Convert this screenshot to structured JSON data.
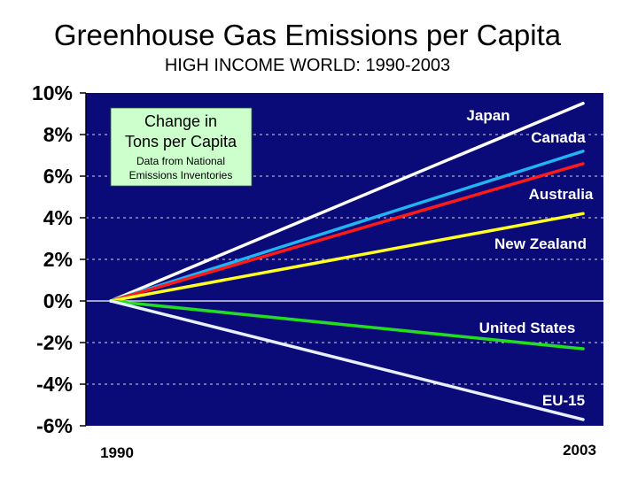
{
  "chart_data": {
    "type": "line",
    "title": "Greenhouse Gas Emissions per Capita",
    "subtitle": "HIGH INCOME WORLD: 1990-2003",
    "x": [
      1990,
      2003
    ],
    "x_tick_labels": [
      "1990",
      "2003"
    ],
    "ylim": [
      -6,
      10
    ],
    "y_ticks": [
      10,
      8,
      6,
      4,
      2,
      0,
      -2,
      -4,
      -6
    ],
    "y_tick_labels": [
      "10%",
      "8%",
      "6%",
      "4%",
      "2%",
      "0%",
      "-2%",
      "-4%",
      "-6%"
    ],
    "grid": true,
    "series": [
      {
        "name": "Japan",
        "color": "#ffffff",
        "values": [
          0,
          9.5
        ]
      },
      {
        "name": "Canada",
        "color": "#22b4f0",
        "values": [
          0,
          7.2
        ]
      },
      {
        "name": "Australia",
        "color": "#ff1a1a",
        "values": [
          0,
          6.6
        ]
      },
      {
        "name": "New Zealand",
        "color": "#ffff22",
        "values": [
          0,
          4.2
        ]
      },
      {
        "name": "United States",
        "color": "#22dd22",
        "values": [
          0,
          -2.3
        ]
      },
      {
        "name": "EU-15",
        "color": "#e8f0ff",
        "values": [
          0,
          -5.7
        ]
      }
    ],
    "annotation": {
      "title": "Change in Tons per Capita",
      "title_lines": [
        "Change in",
        "Tons per Capita"
      ],
      "note_lines": [
        "Data from National",
        "Emissions Inventories"
      ],
      "background": "#ccffcc"
    },
    "plot_background": "#0a0a78"
  }
}
